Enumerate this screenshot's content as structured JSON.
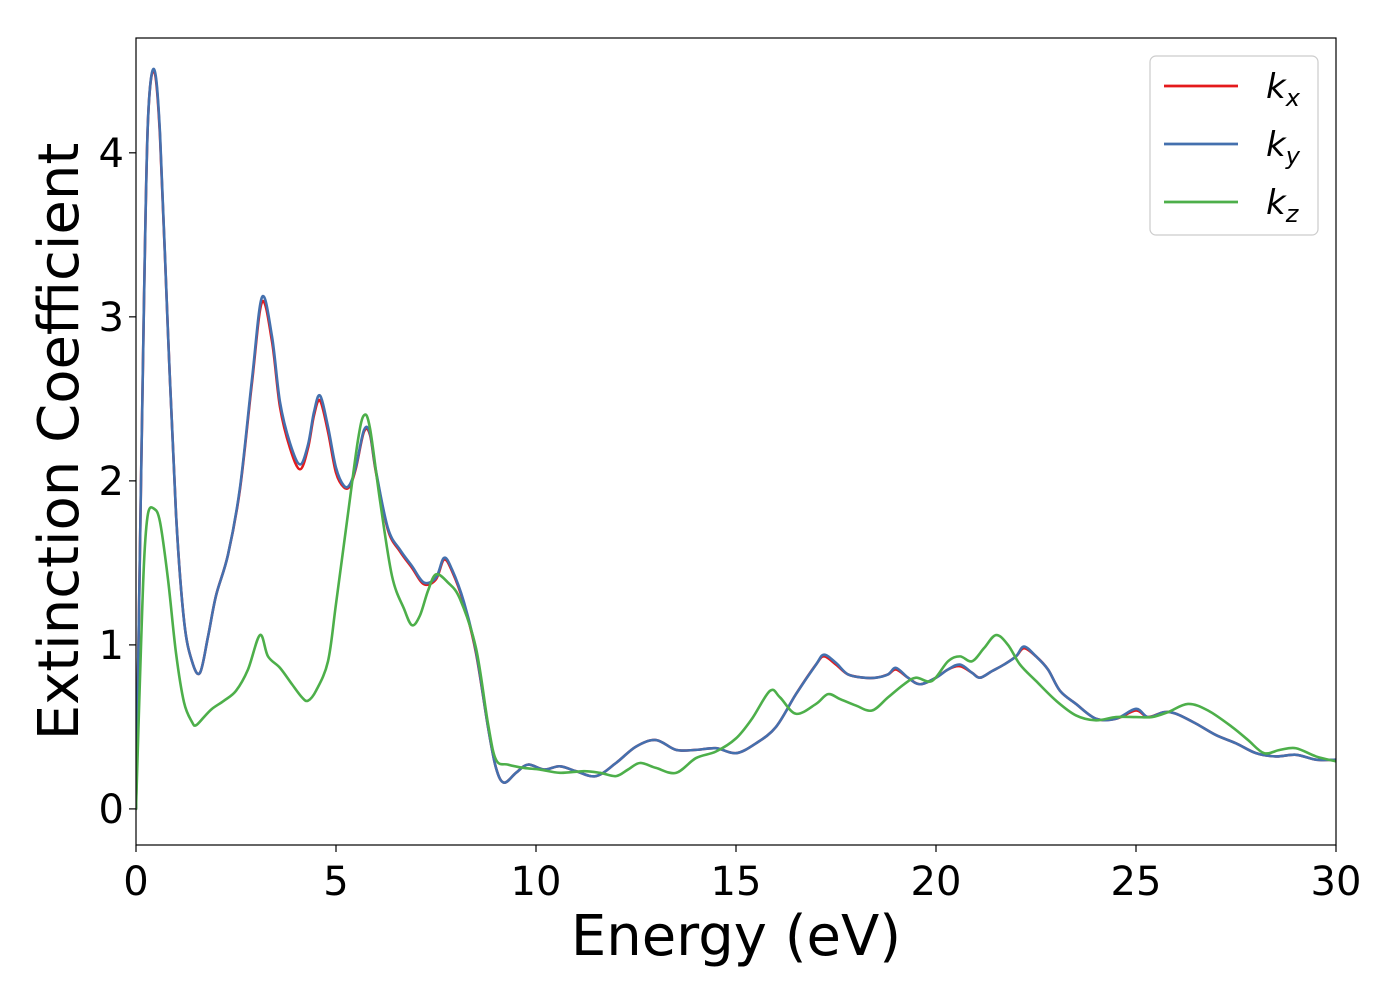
{
  "chart_data": {
    "type": "line",
    "title": "",
    "xlabel": "Energy (eV)",
    "ylabel": "Extinction Coefficient",
    "xlim": [
      0,
      30
    ],
    "ylim": [
      -0.22,
      4.7
    ],
    "xticks": [
      0,
      5,
      10,
      15,
      20,
      25,
      30
    ],
    "yticks": [
      0,
      1,
      2,
      3,
      4
    ],
    "grid": false,
    "legend_position": "top-right",
    "series": [
      {
        "name": "k_x",
        "label_main": "k",
        "label_sub": "x",
        "color": "#e41a1c",
        "points": [
          [
            0,
            0
          ],
          [
            0.1,
            1.6
          ],
          [
            0.2,
            3.1
          ],
          [
            0.3,
            4.2
          ],
          [
            0.45,
            4.5
          ],
          [
            0.6,
            4.1
          ],
          [
            0.8,
            2.9
          ],
          [
            1.0,
            1.8
          ],
          [
            1.2,
            1.15
          ],
          [
            1.4,
            0.9
          ],
          [
            1.6,
            0.83
          ],
          [
            1.8,
            1.05
          ],
          [
            2.0,
            1.3
          ],
          [
            2.3,
            1.55
          ],
          [
            2.6,
            1.95
          ],
          [
            2.9,
            2.6
          ],
          [
            3.15,
            3.09
          ],
          [
            3.4,
            2.85
          ],
          [
            3.6,
            2.45
          ],
          [
            3.85,
            2.2
          ],
          [
            4.1,
            2.07
          ],
          [
            4.3,
            2.2
          ],
          [
            4.45,
            2.4
          ],
          [
            4.6,
            2.49
          ],
          [
            4.8,
            2.3
          ],
          [
            5.0,
            2.05
          ],
          [
            5.2,
            1.96
          ],
          [
            5.35,
            1.97
          ],
          [
            5.5,
            2.08
          ],
          [
            5.7,
            2.3
          ],
          [
            5.85,
            2.28
          ],
          [
            6.0,
            2.05
          ],
          [
            6.3,
            1.7
          ],
          [
            6.6,
            1.57
          ],
          [
            6.9,
            1.47
          ],
          [
            7.2,
            1.37
          ],
          [
            7.5,
            1.4
          ],
          [
            7.7,
            1.52
          ],
          [
            7.9,
            1.45
          ],
          [
            8.2,
            1.25
          ],
          [
            8.5,
            0.95
          ],
          [
            8.8,
            0.5
          ],
          [
            9.0,
            0.25
          ],
          [
            9.2,
            0.16
          ],
          [
            9.5,
            0.22
          ],
          [
            9.8,
            0.27
          ],
          [
            10.2,
            0.24
          ],
          [
            10.6,
            0.26
          ],
          [
            11.0,
            0.23
          ],
          [
            11.5,
            0.2
          ],
          [
            12.0,
            0.28
          ],
          [
            12.5,
            0.38
          ],
          [
            13.0,
            0.42
          ],
          [
            13.5,
            0.36
          ],
          [
            14.0,
            0.36
          ],
          [
            14.5,
            0.37
          ],
          [
            15.0,
            0.34
          ],
          [
            15.5,
            0.4
          ],
          [
            16.0,
            0.5
          ],
          [
            16.5,
            0.7
          ],
          [
            17.0,
            0.88
          ],
          [
            17.2,
            0.93
          ],
          [
            17.5,
            0.88
          ],
          [
            17.8,
            0.82
          ],
          [
            18.2,
            0.8
          ],
          [
            18.5,
            0.8
          ],
          [
            18.8,
            0.82
          ],
          [
            19.0,
            0.85
          ],
          [
            19.3,
            0.8
          ],
          [
            19.6,
            0.76
          ],
          [
            20.0,
            0.8
          ],
          [
            20.3,
            0.85
          ],
          [
            20.6,
            0.87
          ],
          [
            20.9,
            0.83
          ],
          [
            21.1,
            0.8
          ],
          [
            21.4,
            0.84
          ],
          [
            21.7,
            0.88
          ],
          [
            22.0,
            0.93
          ],
          [
            22.2,
            0.98
          ],
          [
            22.5,
            0.93
          ],
          [
            22.8,
            0.85
          ],
          [
            23.1,
            0.72
          ],
          [
            23.5,
            0.64
          ],
          [
            24.0,
            0.55
          ],
          [
            24.5,
            0.55
          ],
          [
            25.0,
            0.6
          ],
          [
            25.3,
            0.56
          ],
          [
            25.7,
            0.59
          ],
          [
            26.0,
            0.58
          ],
          [
            26.5,
            0.52
          ],
          [
            27.0,
            0.45
          ],
          [
            27.5,
            0.4
          ],
          [
            28.0,
            0.34
          ],
          [
            28.5,
            0.32
          ],
          [
            29.0,
            0.33
          ],
          [
            29.5,
            0.3
          ],
          [
            30.0,
            0.3
          ]
        ]
      },
      {
        "name": "k_y",
        "label_main": "k",
        "label_sub": "y",
        "color": "#4470ae",
        "points": [
          [
            0,
            0
          ],
          [
            0.1,
            1.6
          ],
          [
            0.2,
            3.1
          ],
          [
            0.3,
            4.2
          ],
          [
            0.45,
            4.51
          ],
          [
            0.6,
            4.12
          ],
          [
            0.8,
            2.9
          ],
          [
            1.0,
            1.8
          ],
          [
            1.2,
            1.15
          ],
          [
            1.4,
            0.9
          ],
          [
            1.6,
            0.83
          ],
          [
            1.8,
            1.05
          ],
          [
            2.0,
            1.3
          ],
          [
            2.3,
            1.55
          ],
          [
            2.6,
            1.96
          ],
          [
            2.9,
            2.62
          ],
          [
            3.15,
            3.12
          ],
          [
            3.4,
            2.88
          ],
          [
            3.6,
            2.48
          ],
          [
            3.85,
            2.23
          ],
          [
            4.1,
            2.1
          ],
          [
            4.3,
            2.22
          ],
          [
            4.45,
            2.42
          ],
          [
            4.6,
            2.52
          ],
          [
            4.8,
            2.33
          ],
          [
            5.0,
            2.08
          ],
          [
            5.2,
            1.97
          ],
          [
            5.35,
            1.98
          ],
          [
            5.5,
            2.09
          ],
          [
            5.7,
            2.31
          ],
          [
            5.85,
            2.29
          ],
          [
            6.0,
            2.06
          ],
          [
            6.3,
            1.71
          ],
          [
            6.6,
            1.58
          ],
          [
            6.9,
            1.48
          ],
          [
            7.2,
            1.38
          ],
          [
            7.5,
            1.41
          ],
          [
            7.7,
            1.53
          ],
          [
            7.9,
            1.46
          ],
          [
            8.2,
            1.26
          ],
          [
            8.5,
            0.96
          ],
          [
            8.8,
            0.5
          ],
          [
            9.0,
            0.25
          ],
          [
            9.2,
            0.16
          ],
          [
            9.5,
            0.22
          ],
          [
            9.8,
            0.27
          ],
          [
            10.2,
            0.24
          ],
          [
            10.6,
            0.26
          ],
          [
            11.0,
            0.23
          ],
          [
            11.5,
            0.2
          ],
          [
            12.0,
            0.28
          ],
          [
            12.5,
            0.38
          ],
          [
            13.0,
            0.42
          ],
          [
            13.5,
            0.36
          ],
          [
            14.0,
            0.36
          ],
          [
            14.5,
            0.37
          ],
          [
            15.0,
            0.34
          ],
          [
            15.5,
            0.4
          ],
          [
            16.0,
            0.5
          ],
          [
            16.5,
            0.7
          ],
          [
            17.0,
            0.88
          ],
          [
            17.2,
            0.94
          ],
          [
            17.5,
            0.89
          ],
          [
            17.8,
            0.82
          ],
          [
            18.2,
            0.8
          ],
          [
            18.5,
            0.8
          ],
          [
            18.8,
            0.82
          ],
          [
            19.0,
            0.86
          ],
          [
            19.3,
            0.8
          ],
          [
            19.6,
            0.76
          ],
          [
            20.0,
            0.8
          ],
          [
            20.3,
            0.85
          ],
          [
            20.6,
            0.88
          ],
          [
            20.9,
            0.83
          ],
          [
            21.1,
            0.8
          ],
          [
            21.4,
            0.84
          ],
          [
            21.7,
            0.88
          ],
          [
            22.0,
            0.93
          ],
          [
            22.2,
            0.99
          ],
          [
            22.5,
            0.93
          ],
          [
            22.8,
            0.85
          ],
          [
            23.1,
            0.72
          ],
          [
            23.5,
            0.64
          ],
          [
            24.0,
            0.55
          ],
          [
            24.5,
            0.55
          ],
          [
            25.0,
            0.61
          ],
          [
            25.3,
            0.56
          ],
          [
            25.7,
            0.59
          ],
          [
            26.0,
            0.58
          ],
          [
            26.5,
            0.52
          ],
          [
            27.0,
            0.45
          ],
          [
            27.5,
            0.4
          ],
          [
            28.0,
            0.34
          ],
          [
            28.5,
            0.32
          ],
          [
            29.0,
            0.33
          ],
          [
            29.5,
            0.3
          ],
          [
            30.0,
            0.3
          ]
        ]
      },
      {
        "name": "k_z",
        "label_main": "k",
        "label_sub": "z",
        "color": "#4daf4a",
        "points": [
          [
            0,
            0
          ],
          [
            0.1,
            0.8
          ],
          [
            0.2,
            1.5
          ],
          [
            0.3,
            1.8
          ],
          [
            0.45,
            1.83
          ],
          [
            0.6,
            1.75
          ],
          [
            0.8,
            1.4
          ],
          [
            1.0,
            0.95
          ],
          [
            1.2,
            0.65
          ],
          [
            1.4,
            0.53
          ],
          [
            1.5,
            0.51
          ],
          [
            1.7,
            0.56
          ],
          [
            1.9,
            0.61
          ],
          [
            2.2,
            0.66
          ],
          [
            2.5,
            0.72
          ],
          [
            2.8,
            0.85
          ],
          [
            3.1,
            1.06
          ],
          [
            3.3,
            0.93
          ],
          [
            3.6,
            0.86
          ],
          [
            3.9,
            0.76
          ],
          [
            4.15,
            0.68
          ],
          [
            4.3,
            0.66
          ],
          [
            4.5,
            0.72
          ],
          [
            4.8,
            0.9
          ],
          [
            5.0,
            1.25
          ],
          [
            5.3,
            1.8
          ],
          [
            5.55,
            2.25
          ],
          [
            5.7,
            2.4
          ],
          [
            5.85,
            2.32
          ],
          [
            6.1,
            1.88
          ],
          [
            6.4,
            1.42
          ],
          [
            6.7,
            1.22
          ],
          [
            6.9,
            1.12
          ],
          [
            7.1,
            1.18
          ],
          [
            7.3,
            1.33
          ],
          [
            7.5,
            1.43
          ],
          [
            7.8,
            1.38
          ],
          [
            8.1,
            1.28
          ],
          [
            8.5,
            0.98
          ],
          [
            8.8,
            0.52
          ],
          [
            9.0,
            0.3
          ],
          [
            9.3,
            0.27
          ],
          [
            9.7,
            0.25
          ],
          [
            10.1,
            0.24
          ],
          [
            10.6,
            0.22
          ],
          [
            11.2,
            0.23
          ],
          [
            11.6,
            0.22
          ],
          [
            12.0,
            0.2
          ],
          [
            12.3,
            0.24
          ],
          [
            12.6,
            0.28
          ],
          [
            13.0,
            0.25
          ],
          [
            13.5,
            0.22
          ],
          [
            14.0,
            0.31
          ],
          [
            14.5,
            0.35
          ],
          [
            15.0,
            0.43
          ],
          [
            15.4,
            0.55
          ],
          [
            15.85,
            0.72
          ],
          [
            16.1,
            0.68
          ],
          [
            16.5,
            0.58
          ],
          [
            17.0,
            0.64
          ],
          [
            17.3,
            0.7
          ],
          [
            17.6,
            0.67
          ],
          [
            18.0,
            0.63
          ],
          [
            18.4,
            0.6
          ],
          [
            18.8,
            0.68
          ],
          [
            19.2,
            0.76
          ],
          [
            19.5,
            0.8
          ],
          [
            19.9,
            0.78
          ],
          [
            20.3,
            0.9
          ],
          [
            20.6,
            0.93
          ],
          [
            20.9,
            0.9
          ],
          [
            21.2,
            0.98
          ],
          [
            21.5,
            1.06
          ],
          [
            21.8,
            1.0
          ],
          [
            22.1,
            0.88
          ],
          [
            22.5,
            0.78
          ],
          [
            23.0,
            0.66
          ],
          [
            23.5,
            0.57
          ],
          [
            24.0,
            0.54
          ],
          [
            24.5,
            0.56
          ],
          [
            25.0,
            0.56
          ],
          [
            25.4,
            0.56
          ],
          [
            25.8,
            0.59
          ],
          [
            26.3,
            0.64
          ],
          [
            26.8,
            0.6
          ],
          [
            27.4,
            0.5
          ],
          [
            27.8,
            0.42
          ],
          [
            28.2,
            0.34
          ],
          [
            28.6,
            0.36
          ],
          [
            29.0,
            0.37
          ],
          [
            29.5,
            0.32
          ],
          [
            30.0,
            0.29
          ]
        ]
      }
    ]
  }
}
